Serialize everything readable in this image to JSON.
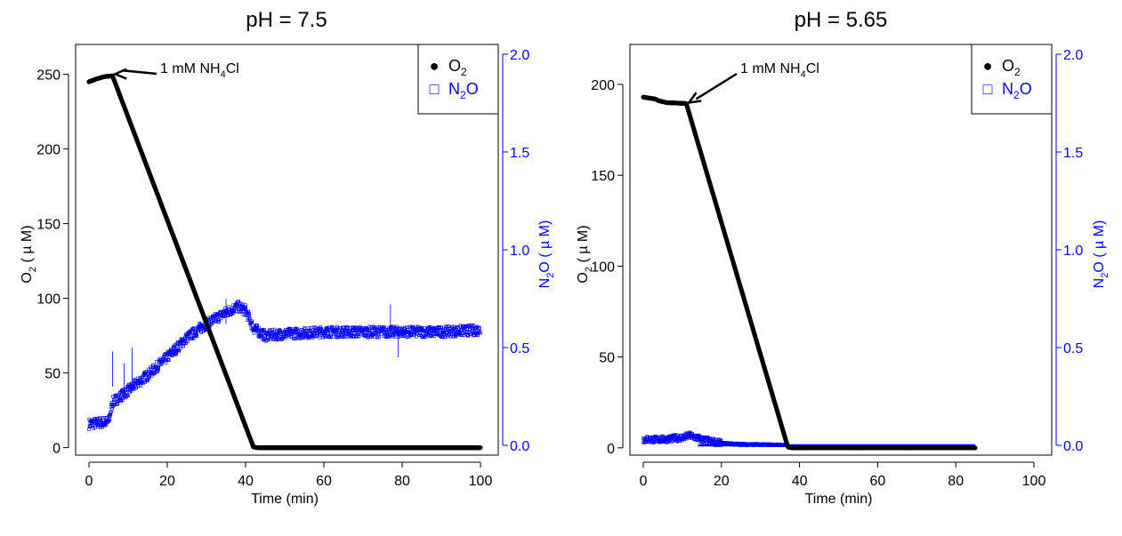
{
  "chart_data": [
    {
      "type": "scatter",
      "title": "pH = 7.5",
      "xlabel": "Time (min)",
      "ylabel_main": "O",
      "ylabel_sub": "2",
      "ylabel_unit": "( µ M)",
      "y2label_main": "N",
      "y2label_sub": "2",
      "y2label_rest": "O",
      "y2label_unit": "( µ M)",
      "xlim": [
        0,
        100
      ],
      "ylim": [
        -5,
        270
      ],
      "y2lim": [
        -0.05,
        2.05
      ],
      "xticks": [
        "0",
        "20",
        "40",
        "60",
        "80",
        "100"
      ],
      "yticks": [
        "0",
        "50",
        "100",
        "150",
        "200",
        "250"
      ],
      "y2ticks": [
        "0.0",
        "0.5",
        "1.0",
        "1.5",
        "2.0"
      ],
      "legend": {
        "position": "top-right",
        "entries": [
          {
            "symbol": "●",
            "main": "O",
            "sub": "2",
            "rest": "",
            "color": "#000000"
          },
          {
            "symbol": "□",
            "main": "N",
            "sub": "2",
            "rest": "O",
            "color": "#0000ff"
          }
        ]
      },
      "annotation": {
        "pre": "1 mM NH",
        "sub": "4",
        "post": "Cl",
        "x": 6,
        "y": 249
      },
      "series": [
        {
          "name": "O2",
          "axis": "left",
          "color": "#000000",
          "points": [
            [
              0,
              245
            ],
            [
              2,
              247
            ],
            [
              4,
              248.5
            ],
            [
              6,
              249
            ],
            [
              42,
              0.5
            ],
            [
              43,
              0
            ],
            [
              100,
              0
            ]
          ]
        },
        {
          "name": "N2O",
          "axis": "right",
          "color": "#0000ff",
          "points": [
            [
              0,
              0.11
            ],
            [
              5,
              0.12
            ],
            [
              6,
              0.22
            ],
            [
              10,
              0.28
            ],
            [
              15,
              0.36
            ],
            [
              20,
              0.45
            ],
            [
              25,
              0.55
            ],
            [
              30,
              0.62
            ],
            [
              35,
              0.68
            ],
            [
              38,
              0.71
            ],
            [
              40,
              0.69
            ],
            [
              42,
              0.6
            ],
            [
              45,
              0.56
            ],
            [
              50,
              0.57
            ],
            [
              60,
              0.58
            ],
            [
              70,
              0.58
            ],
            [
              80,
              0.58
            ],
            [
              90,
              0.58
            ],
            [
              100,
              0.59
            ]
          ]
        }
      ]
    },
    {
      "type": "scatter",
      "title": "pH = 5.65",
      "xlabel": "Time (min)",
      "ylabel_main": "O",
      "ylabel_sub": "2",
      "ylabel_unit": "( µ M)",
      "y2label_main": "N",
      "y2label_sub": "2",
      "y2label_rest": "O",
      "y2label_unit": "( µ M)",
      "xlim": [
        0,
        100
      ],
      "ylim": [
        -4,
        222
      ],
      "y2lim": [
        -0.05,
        2.05
      ],
      "xticks": [
        "0",
        "20",
        "40",
        "60",
        "80",
        "100"
      ],
      "yticks": [
        "0",
        "50",
        "100",
        "150",
        "200"
      ],
      "y2ticks": [
        "0.0",
        "0.5",
        "1.0",
        "1.5",
        "2.0"
      ],
      "legend": {
        "position": "top-right",
        "entries": [
          {
            "symbol": "●",
            "main": "O",
            "sub": "2",
            "rest": "",
            "color": "#000000"
          },
          {
            "symbol": "□",
            "main": "N",
            "sub": "2",
            "rest": "O",
            "color": "#0000ff"
          }
        ]
      },
      "annotation": {
        "pre": "1 mM NH",
        "sub": "4",
        "post": "Cl",
        "x": 11,
        "y": 189
      },
      "series": [
        {
          "name": "O2",
          "axis": "left",
          "color": "#000000",
          "points": [
            [
              0,
              193
            ],
            [
              3,
              192
            ],
            [
              4,
              191
            ],
            [
              6,
              190
            ],
            [
              11,
              189.5
            ],
            [
              37,
              0.5
            ],
            [
              38,
              0
            ],
            [
              85,
              0
            ]
          ]
        },
        {
          "name": "N2O",
          "axis": "right",
          "color": "#0000ff",
          "points": [
            [
              0,
              0.03
            ],
            [
              5,
              0.03
            ],
            [
              10,
              0.04
            ],
            [
              12,
              0.05
            ],
            [
              15,
              0.03
            ],
            [
              20,
              0.01
            ],
            [
              25,
              0.005
            ],
            [
              37,
              0.0
            ],
            [
              85,
              0.0
            ]
          ]
        }
      ]
    }
  ]
}
